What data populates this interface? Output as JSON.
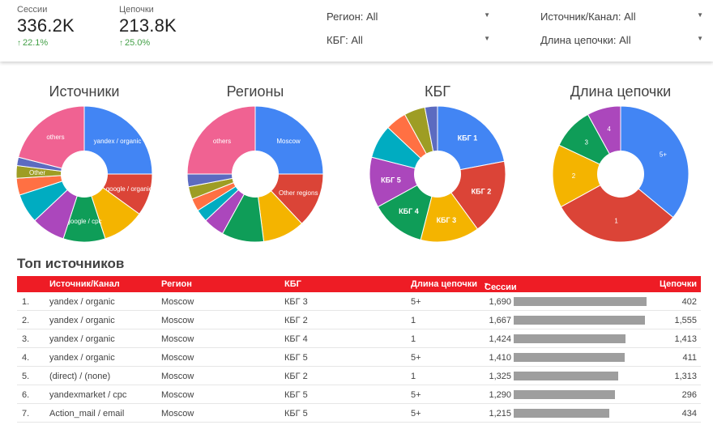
{
  "scorecards": [
    {
      "label": "Сессии",
      "value": "336.2K",
      "delta": "22.1%"
    },
    {
      "label": "Цепочки",
      "value": "213.8K",
      "delta": "25.0%"
    }
  ],
  "filters": {
    "region": "Регион: All",
    "kbg": "КБГ: All",
    "source": "Источник/Канал: All",
    "chain_length": "Длина цепочки: All"
  },
  "colors": {
    "blue": "#4285f4",
    "red": "#db4437",
    "yellow": "#f4b400",
    "green": "#0f9d58",
    "purple": "#ab47bc",
    "teal": "#00acc1",
    "orange": "#ff7043",
    "olive": "#9e9d24",
    "indigo": "#5c6bc0",
    "pink": "#f06292",
    "header": "#ee1c25",
    "bar": "#9e9e9e"
  },
  "chart_data": [
    {
      "type": "pie",
      "title": "Источники",
      "labels": [
        "yandex / organic",
        "google / organic",
        "",
        "google / cpc",
        "",
        "",
        "",
        "Other",
        "",
        "others"
      ],
      "values": [
        25,
        10,
        10,
        10,
        8,
        7,
        4,
        3,
        2,
        21
      ],
      "colors": [
        "#4285f4",
        "#db4437",
        "#f4b400",
        "#0f9d58",
        "#ab47bc",
        "#00acc1",
        "#ff7043",
        "#9e9d24",
        "#5c6bc0",
        "#f06292"
      ]
    },
    {
      "type": "pie",
      "title": "Регионы",
      "labels": [
        "Moscow",
        "Other regions",
        "",
        "",
        "",
        "",
        "",
        "",
        "",
        "others"
      ],
      "values": [
        25,
        13,
        10,
        10,
        5,
        3,
        3,
        3,
        3,
        25
      ],
      "colors": [
        "#4285f4",
        "#db4437",
        "#f4b400",
        "#0f9d58",
        "#ab47bc",
        "#00acc1",
        "#ff7043",
        "#9e9d24",
        "#5c6bc0",
        "#f06292"
      ]
    },
    {
      "type": "pie",
      "title": "КБГ",
      "labels": [
        "КБГ 1",
        "КБГ 2",
        "КБГ 3",
        "КБГ 4",
        "КБГ 5",
        "",
        "",
        "",
        ""
      ],
      "values": [
        22,
        18,
        14,
        13,
        12,
        8,
        5,
        5,
        3
      ],
      "colors": [
        "#4285f4",
        "#db4437",
        "#f4b400",
        "#0f9d58",
        "#ab47bc",
        "#00acc1",
        "#ff7043",
        "#9e9d24",
        "#5c6bc0"
      ]
    },
    {
      "type": "pie",
      "title": "Длина цепочки",
      "labels": [
        "5+",
        "1",
        "2",
        "3",
        "4"
      ],
      "values": [
        36,
        31,
        15,
        10,
        8
      ],
      "colors": [
        "#4285f4",
        "#db4437",
        "#f4b400",
        "#0f9d58",
        "#ab47bc"
      ]
    },
    {
      "type": "table",
      "title": "Топ источников",
      "columns": [
        "Источник/Канал",
        "Регион",
        "КБГ",
        "Длина цепочки",
        "Сессии",
        "Цепочки"
      ],
      "sort_indicator": "▾",
      "rows": [
        {
          "n": "1.",
          "source": "yandex / organic",
          "region": "Moscow",
          "kbg": "КБГ 3",
          "chain": "5+",
          "sessions": "1,690",
          "sessions_value": 1690,
          "chains": "402"
        },
        {
          "n": "2.",
          "source": "yandex / organic",
          "region": "Moscow",
          "kbg": "КБГ 2",
          "chain": "1",
          "sessions": "1,667",
          "sessions_value": 1667,
          "chains": "1,555"
        },
        {
          "n": "3.",
          "source": "yandex / organic",
          "region": "Moscow",
          "kbg": "КБГ 4",
          "chain": "1",
          "sessions": "1,424",
          "sessions_value": 1424,
          "chains": "1,413"
        },
        {
          "n": "4.",
          "source": "yandex / organic",
          "region": "Moscow",
          "kbg": "КБГ 5",
          "chain": "5+",
          "sessions": "1,410",
          "sessions_value": 1410,
          "chains": "411"
        },
        {
          "n": "5.",
          "source": "(direct) / (none)",
          "region": "Moscow",
          "kbg": "КБГ 2",
          "chain": "1",
          "sessions": "1,325",
          "sessions_value": 1325,
          "chains": "1,313"
        },
        {
          "n": "6.",
          "source": "yandexmarket / cpc",
          "region": "Moscow",
          "kbg": "КБГ 5",
          "chain": "5+",
          "sessions": "1,290",
          "sessions_value": 1290,
          "chains": "296"
        },
        {
          "n": "7.",
          "source": "Action_mail / email",
          "region": "Moscow",
          "kbg": "КБГ 5",
          "chain": "5+",
          "sessions": "1,215",
          "sessions_value": 1215,
          "chains": "434"
        }
      ]
    }
  ]
}
